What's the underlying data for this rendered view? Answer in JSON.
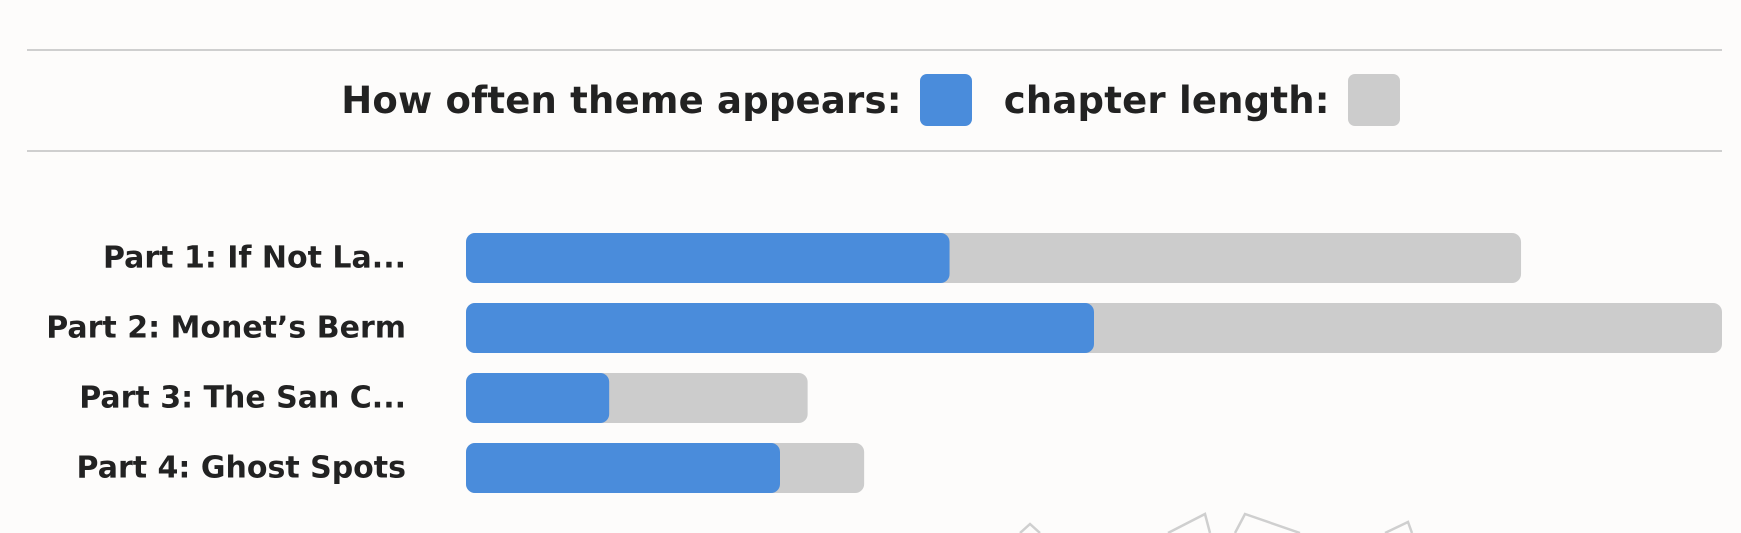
{
  "legend": {
    "primary_label": "How often theme appears:",
    "secondary_label": "chapter length:",
    "primary_color": "#4a8cdb",
    "secondary_color": "#cccccc"
  },
  "chart_data": {
    "type": "bar",
    "orientation": "horizontal",
    "categories": [
      "Part 1: If Not La...",
      "Part 2: Monet’s Berm",
      "Part 3: The San C...",
      "Part 4: Ghost Spots"
    ],
    "series": [
      {
        "name": "How often theme appears",
        "values": [
          0.385,
          0.5,
          0.114,
          0.25
        ]
      },
      {
        "name": "chapter length",
        "values": [
          0.84,
          1.0,
          0.272,
          0.317
        ]
      }
    ],
    "xlim": [
      0,
      1
    ],
    "grid": false,
    "legend_position": "top-center"
  }
}
